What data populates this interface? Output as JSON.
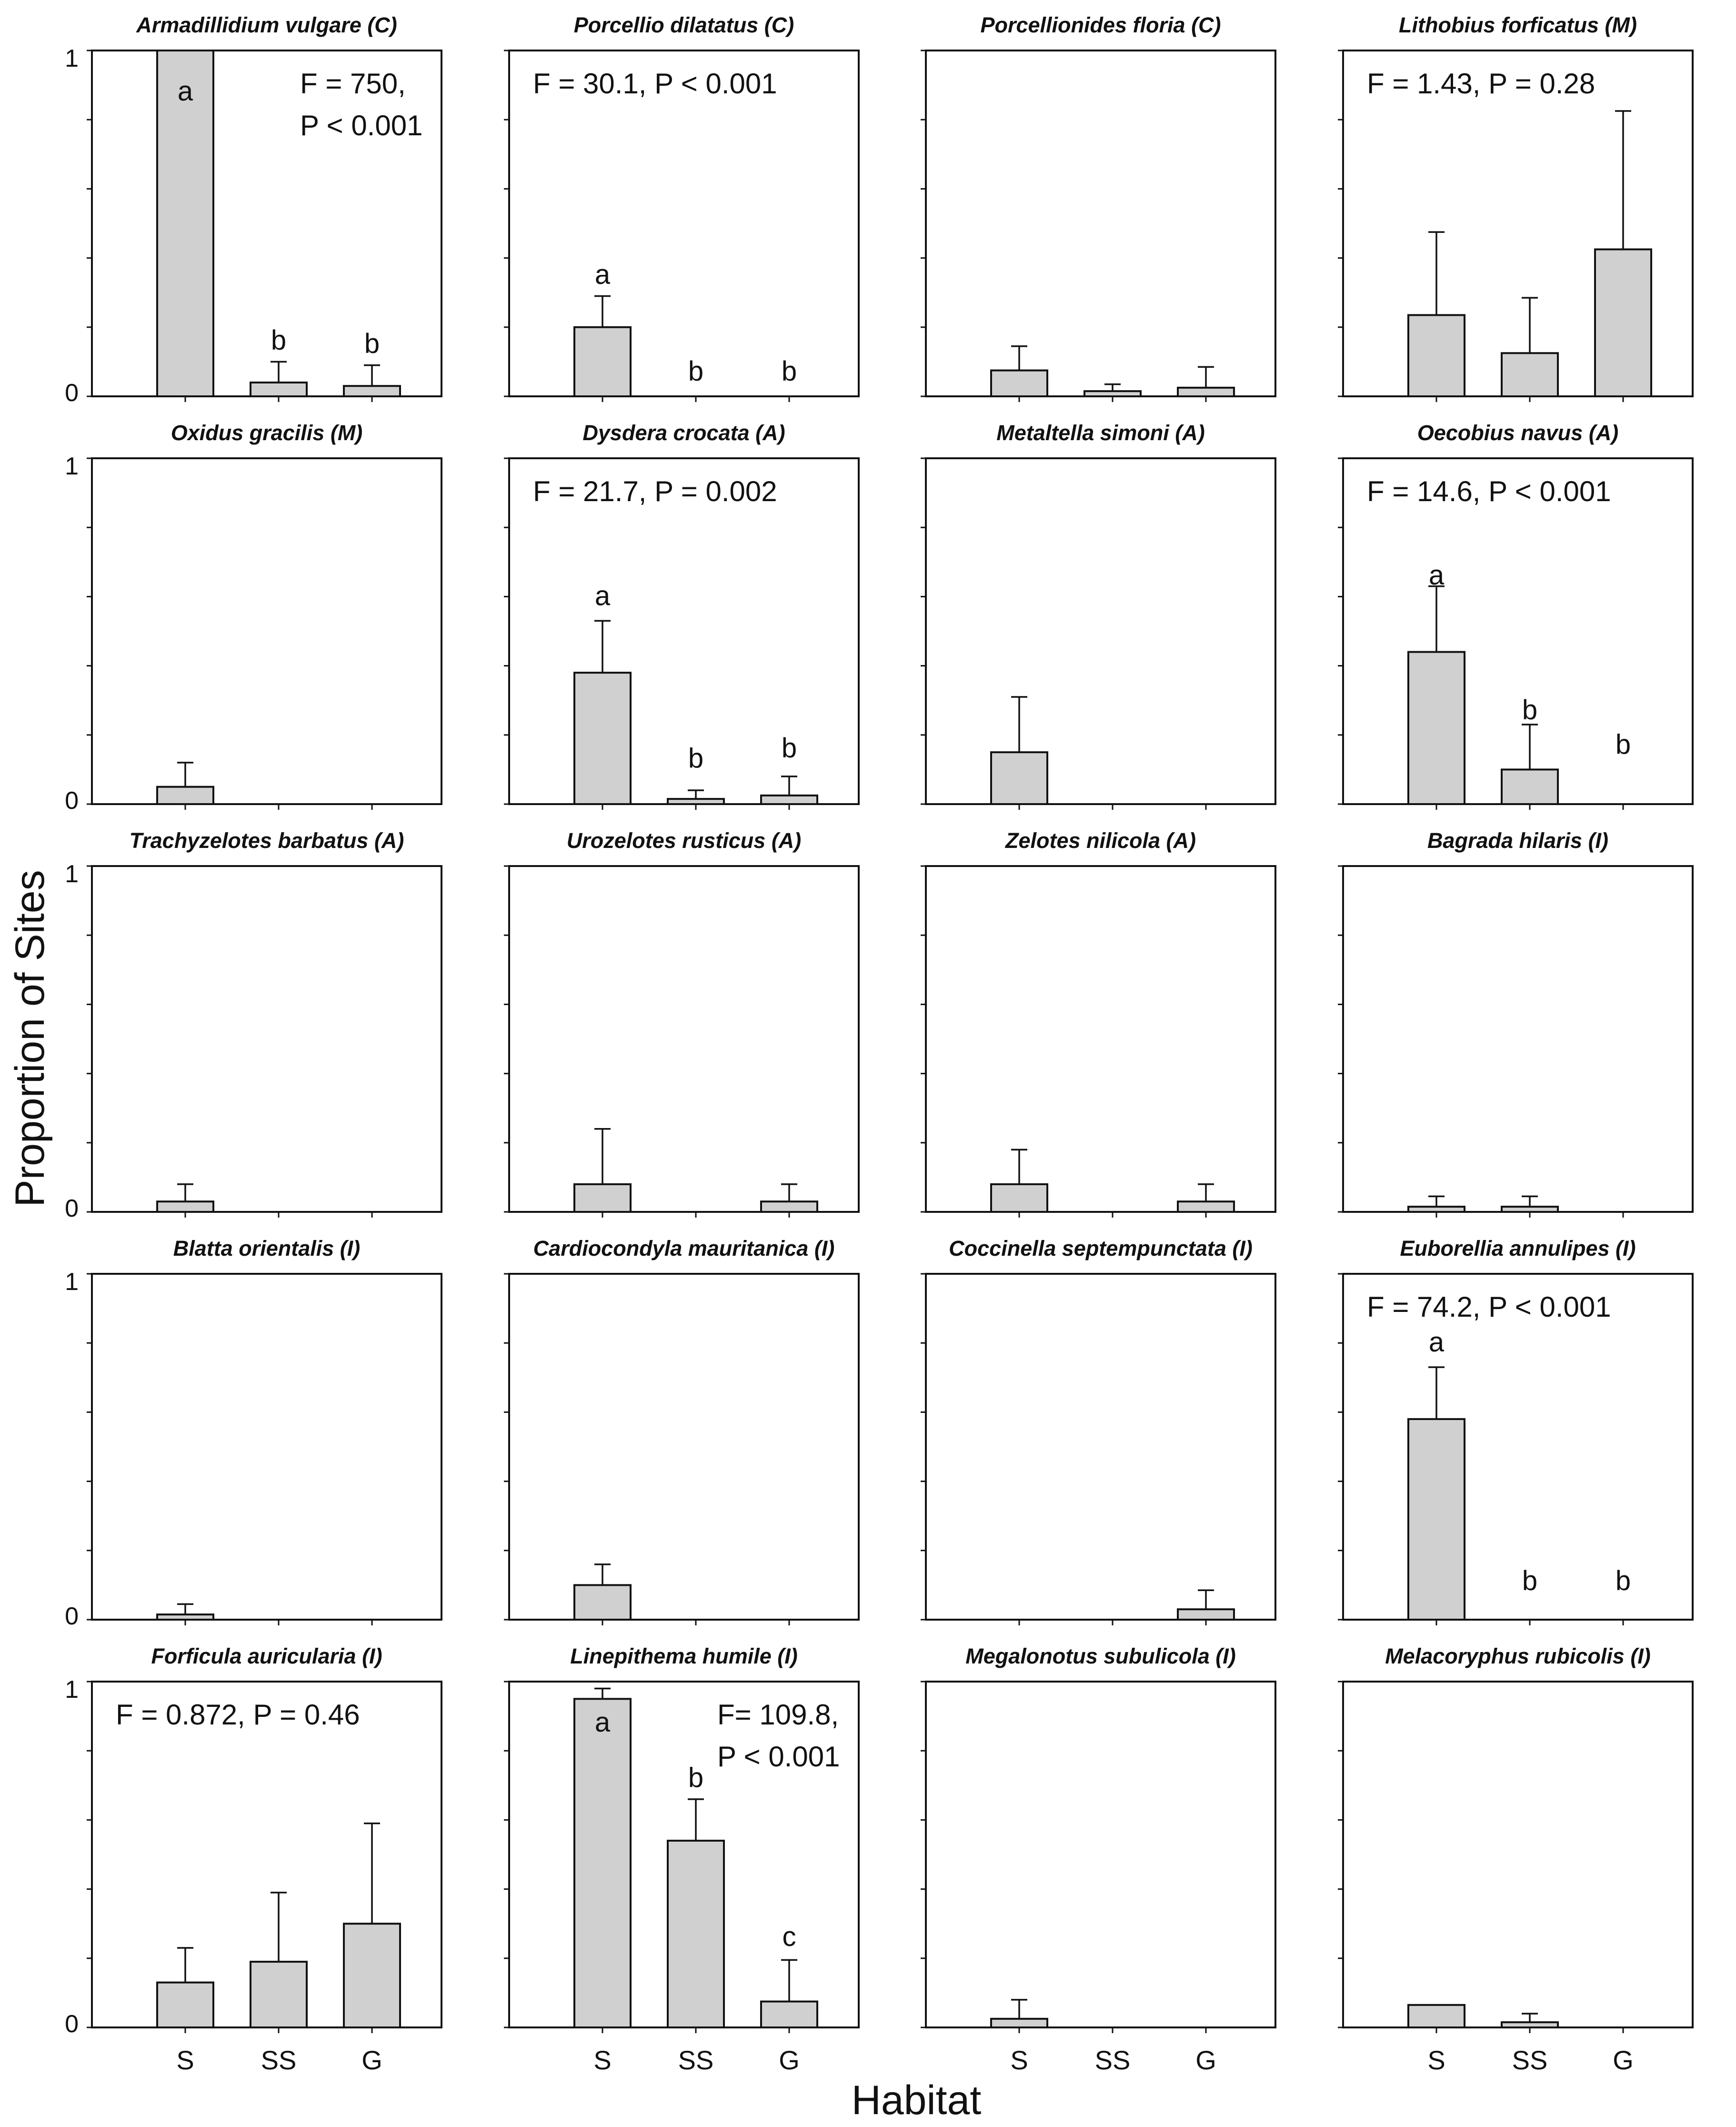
{
  "chart_data": {
    "type": "bar",
    "x_label": "Habitat",
    "y_label": "Proportion of Sites",
    "categories": [
      "S",
      "SS",
      "G"
    ],
    "ylim": [
      0,
      1
    ],
    "y_tick_labels": [
      "0",
      "1"
    ],
    "panels": [
      {
        "title": "Armadillidium vulgare (C)",
        "values": [
          1.0,
          0.04,
          0.03
        ],
        "errors": [
          0,
          0.06,
          0.06
        ],
        "letters": [
          "a",
          "b",
          "b"
        ],
        "letter_values": [
          0.88,
          0.16,
          0.15
        ],
        "stats": [
          "F = 750,",
          "P < 0.001"
        ],
        "stats_pos": "top-right"
      },
      {
        "title": "Porcellio dilatatus (C)",
        "values": [
          0.2,
          0,
          0
        ],
        "errors": [
          0.09,
          0,
          0
        ],
        "letters": [
          "a",
          "b",
          "b"
        ],
        "letter_values": [
          0.35,
          0.07,
          0.07
        ],
        "stats": [
          "F = 30.1, P < 0.001"
        ],
        "stats_pos": "top-left"
      },
      {
        "title": "Porcellionides floria (C)",
        "values": [
          0.075,
          0.015,
          0.025
        ],
        "errors": [
          0.07,
          0.02,
          0.06
        ],
        "letters": [],
        "letter_values": [],
        "stats": [],
        "stats_pos": ""
      },
      {
        "title": "Lithobius forficatus (M)",
        "values": [
          0.235,
          0.125,
          0.425
        ],
        "errors": [
          0.24,
          0.16,
          0.4
        ],
        "letters": [],
        "letter_values": [],
        "stats": [
          "F = 1.43, P = 0.28"
        ],
        "stats_pos": "top-left"
      },
      {
        "title": "Oxidus gracilis (M)",
        "values": [
          0.05,
          0,
          0
        ],
        "errors": [
          0.07,
          0,
          0
        ],
        "letters": [],
        "letter_values": [],
        "stats": [],
        "stats_pos": ""
      },
      {
        "title": "Dysdera crocata (A)",
        "values": [
          0.38,
          0.015,
          0.025
        ],
        "errors": [
          0.15,
          0.025,
          0.055
        ],
        "letters": [
          "a",
          "b",
          "b"
        ],
        "letter_values": [
          0.6,
          0.13,
          0.16
        ],
        "stats": [
          "F = 21.7, P = 0.002"
        ],
        "stats_pos": "top-left"
      },
      {
        "title": "Metaltella simoni (A)",
        "values": [
          0.15,
          0,
          0
        ],
        "errors": [
          0.16,
          0,
          0
        ],
        "letters": [],
        "letter_values": [],
        "stats": [],
        "stats_pos": ""
      },
      {
        "title": "Oecobius navus (A)",
        "values": [
          0.44,
          0.1,
          0
        ],
        "errors": [
          0.19,
          0.13,
          0
        ],
        "letters": [
          "a",
          "b",
          "b"
        ],
        "letter_values": [
          0.66,
          0.27,
          0.17
        ],
        "stats": [
          "F = 14.6, P < 0.001"
        ],
        "stats_pos": "top-left"
      },
      {
        "title": "Trachyzelotes barbatus (A)",
        "values": [
          0.03,
          0,
          0
        ],
        "errors": [
          0.05,
          0,
          0
        ],
        "letters": [],
        "letter_values": [],
        "stats": [],
        "stats_pos": ""
      },
      {
        "title": "Urozelotes rusticus (A)",
        "values": [
          0.08,
          0,
          0.03
        ],
        "errors": [
          0.16,
          0,
          0.05
        ],
        "letters": [],
        "letter_values": [],
        "stats": [],
        "stats_pos": ""
      },
      {
        "title": "Zelotes nilicola (A)",
        "values": [
          0.08,
          0,
          0.03
        ],
        "errors": [
          0.1,
          0,
          0.05
        ],
        "letters": [],
        "letter_values": [],
        "stats": [],
        "stats_pos": ""
      },
      {
        "title": "Bagrada hilaris (I)",
        "values": [
          0.015,
          0.015,
          0
        ],
        "errors": [
          0.03,
          0.03,
          0
        ],
        "letters": [],
        "letter_values": [],
        "stats": [],
        "stats_pos": ""
      },
      {
        "title": "Blatta orientalis (I)",
        "values": [
          0.015,
          0,
          0
        ],
        "errors": [
          0.03,
          0,
          0
        ],
        "letters": [],
        "letter_values": [],
        "stats": [],
        "stats_pos": ""
      },
      {
        "title": "Cardiocondyla mauritanica (I)",
        "values": [
          0.1,
          0,
          0
        ],
        "errors": [
          0.06,
          0,
          0
        ],
        "letters": [],
        "letter_values": [],
        "stats": [],
        "stats_pos": ""
      },
      {
        "title": "Coccinella septempunctata (I)",
        "values": [
          0,
          0,
          0.03
        ],
        "errors": [
          0,
          0,
          0.055
        ],
        "letters": [],
        "letter_values": [],
        "stats": [],
        "stats_pos": ""
      },
      {
        "title": "Euborellia annulipes (I)",
        "values": [
          0.58,
          0,
          0
        ],
        "errors": [
          0.15,
          0,
          0
        ],
        "letters": [
          "a",
          "b",
          "b"
        ],
        "letter_values": [
          0.8,
          0.11,
          0.11
        ],
        "stats": [
          "F = 74.2, P < 0.001"
        ],
        "stats_pos": "top-left"
      },
      {
        "title": "Forficula auricularia (I)",
        "values": [
          0.13,
          0.19,
          0.3
        ],
        "errors": [
          0.1,
          0.2,
          0.29
        ],
        "letters": [],
        "letter_values": [],
        "stats": [
          "F = 0.872, P = 0.46"
        ],
        "stats_pos": "top-left"
      },
      {
        "title": "Linepithema humile (I)",
        "values": [
          0.95,
          0.54,
          0.075
        ],
        "errors": [
          0.03,
          0.12,
          0.12
        ],
        "letters": [
          "a",
          "b",
          "c"
        ],
        "letter_values": [
          0.88,
          0.72,
          0.26
        ],
        "stats": [
          "F= 109.8,",
          "P < 0.001"
        ],
        "stats_pos": "top-right"
      },
      {
        "title": "Megalonotus subulicola (I)",
        "values": [
          0.025,
          0,
          0
        ],
        "errors": [
          0.055,
          0,
          0
        ],
        "letters": [],
        "letter_values": [],
        "stats": [],
        "stats_pos": ""
      },
      {
        "title": "Melacoryphus rubicolis (I)",
        "values": [
          0.065,
          0.015,
          0
        ],
        "errors": [
          0,
          0.025,
          0
        ],
        "letters": [],
        "letter_values": [],
        "stats": [],
        "stats_pos": ""
      }
    ]
  }
}
